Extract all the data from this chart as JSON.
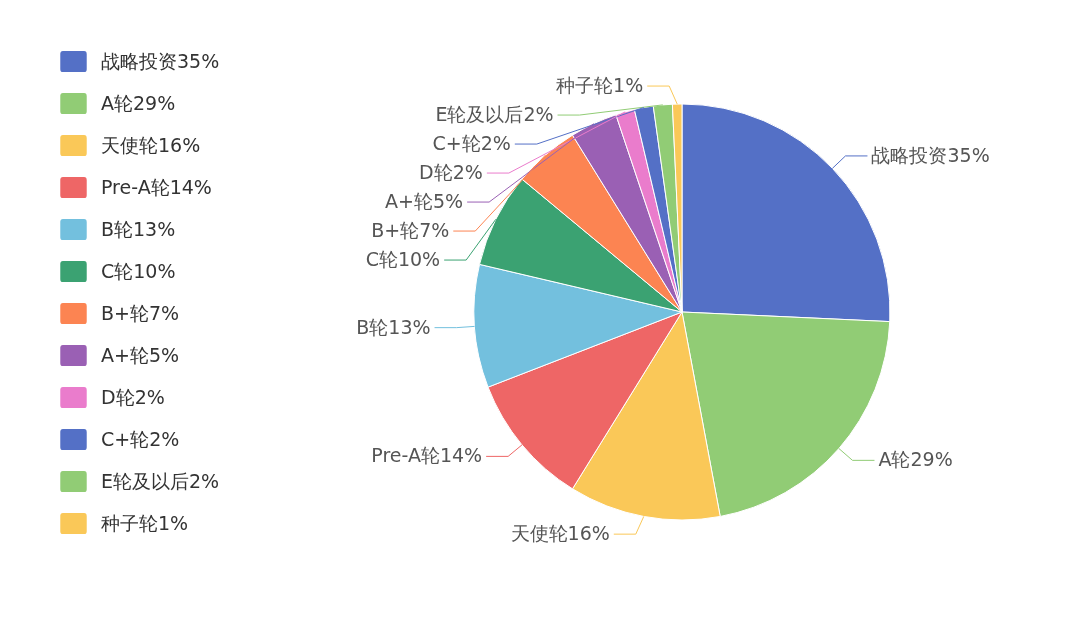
{
  "chart_data": {
    "type": "pie",
    "categories": [
      "战略投资35%",
      "A轮29%",
      "天使轮16%",
      "Pre-A轮14%",
      "B轮13%",
      "C轮10%",
      "B+轮7%",
      "A+轮5%",
      "D轮2%",
      "C+轮2%",
      "E轮及以后2%",
      "种子轮1%"
    ],
    "values": [
      35,
      29,
      16,
      14,
      13,
      10,
      7,
      5,
      2,
      2,
      2,
      1
    ],
    "colors": [
      "#5470c6",
      "#91cc75",
      "#fac858",
      "#ee6666",
      "#73c0de",
      "#3ba272",
      "#fc8452",
      "#9a60b4",
      "#ea7ccc",
      "#5470c6",
      "#91cc75",
      "#fac858"
    ],
    "legend": "left"
  }
}
